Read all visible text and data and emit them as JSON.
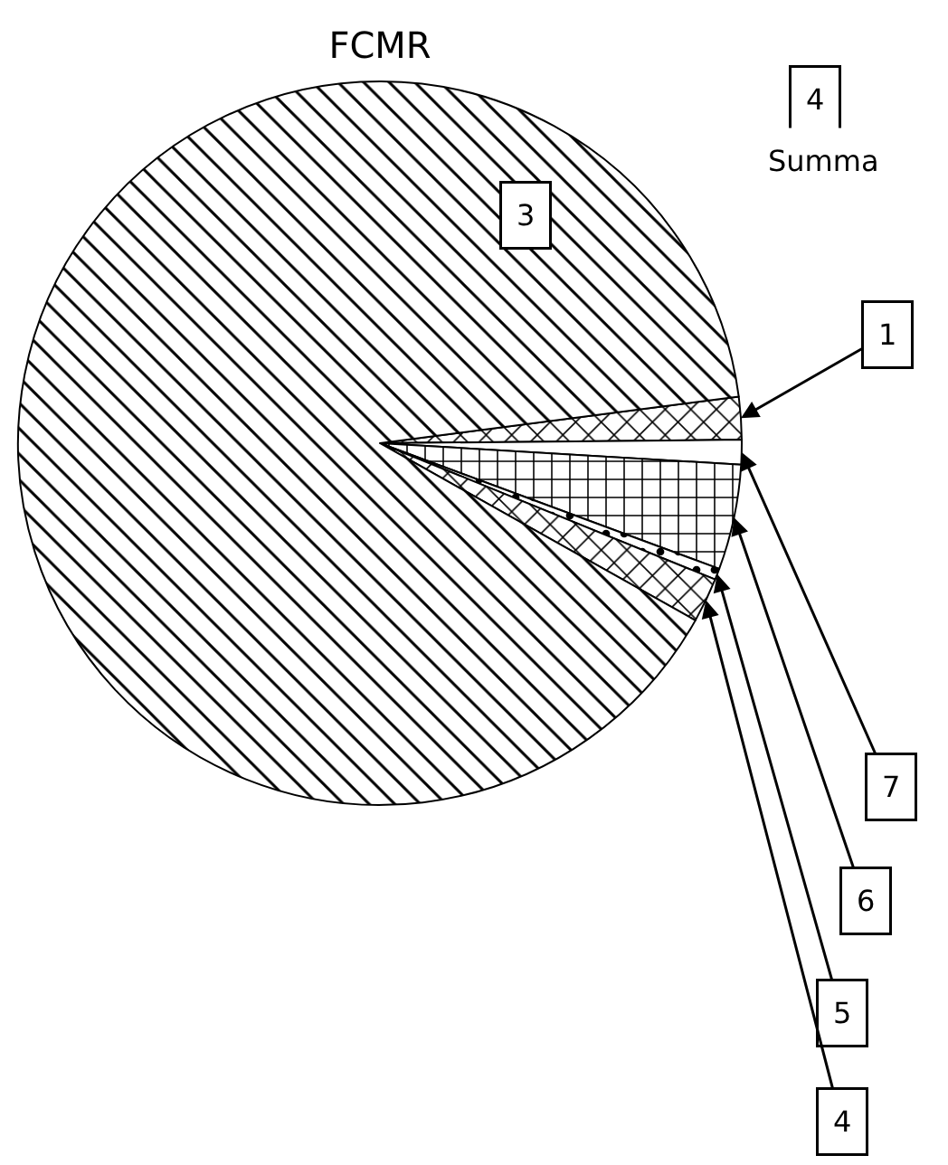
{
  "chart_data": {
    "type": "pie",
    "title": "FCMR",
    "categories": [
      "1",
      "7",
      "6",
      "5",
      "4",
      "3"
    ],
    "values": [
      1.9,
      1.1,
      4.7,
      0.5,
      2.0,
      89.8
    ],
    "annotations": [
      "4",
      "Summa"
    ]
  }
}
